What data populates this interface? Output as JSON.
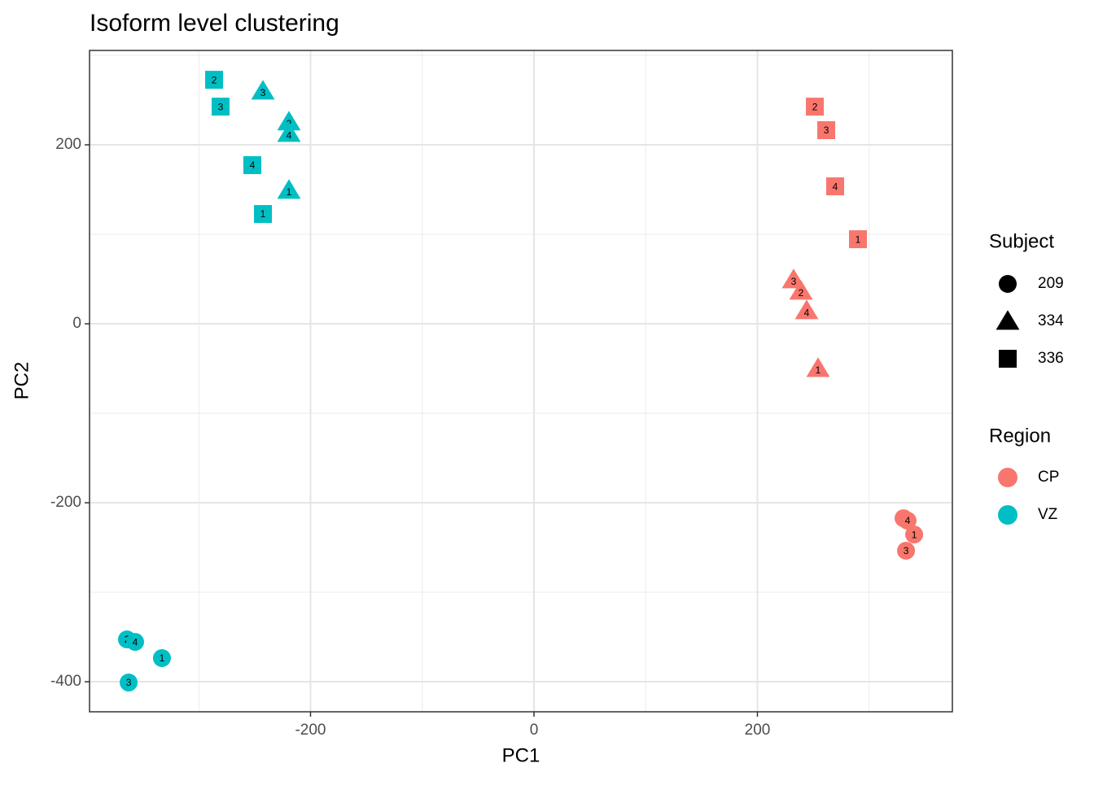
{
  "chart_data": {
    "type": "scatter",
    "title": "Isoform level clustering",
    "x_label": "PC1",
    "y_label": "PC2",
    "xlim": [
      -397.8,
      374.5
    ],
    "ylim": [
      -433.6,
      305.5
    ],
    "xticks": [
      -200,
      0,
      200
    ],
    "yticks": [
      -400,
      -200,
      0,
      200
    ],
    "x_minor_grid": [
      -300,
      -100,
      100,
      300
    ],
    "y_minor_grid": [
      -300,
      -100,
      100,
      300
    ],
    "grid": true,
    "shape_legend": {
      "title": "Subject",
      "entries": [
        "209",
        "334",
        "336"
      ],
      "shapes": [
        "circle",
        "triangle",
        "square"
      ]
    },
    "color_legend_title": "Region",
    "series": [
      {
        "name": "CP",
        "color": "#F8766D",
        "x": [
          251.4,
          261.6,
          269.6,
          290.0,
          232.4,
          239.0,
          244.1,
          254.3,
          330.8,
          334.4,
          340.3,
          333.0
        ],
        "y": [
          242.7,
          216.4,
          153.6,
          94.5,
          49.1,
          36.4,
          14.5,
          -50.0,
          -217.3,
          -220.0,
          -235.5,
          -253.6
        ],
        "subject": [
          "336",
          "336",
          "336",
          "336",
          "334",
          "334",
          "334",
          "334",
          "209",
          "209",
          "209",
          "209"
        ],
        "labels": [
          "2",
          "3",
          "4",
          "1",
          "3",
          "2",
          "4",
          "1",
          "2",
          "4",
          "1",
          "3"
        ]
      },
      {
        "name": "VZ",
        "color": "#00BFC4",
        "x": [
          -286.3,
          -280.5,
          -252.1,
          -242.6,
          -242.6,
          -219.3,
          -219.3,
          -219.3,
          -364.3,
          -357.0,
          -333.0,
          -362.8
        ],
        "y": [
          272.7,
          242.7,
          177.3,
          122.7,
          260.0,
          225.5,
          212.7,
          149.1,
          -352.7,
          -355.5,
          -373.6,
          -400.9
        ],
        "subject": [
          "336",
          "336",
          "336",
          "336",
          "334",
          "334",
          "334",
          "334",
          "209",
          "209",
          "209",
          "209"
        ],
        "labels": [
          "2",
          "3",
          "4",
          "1",
          "3",
          "2",
          "4",
          "1",
          "2",
          "4",
          "1",
          "3"
        ]
      }
    ]
  }
}
